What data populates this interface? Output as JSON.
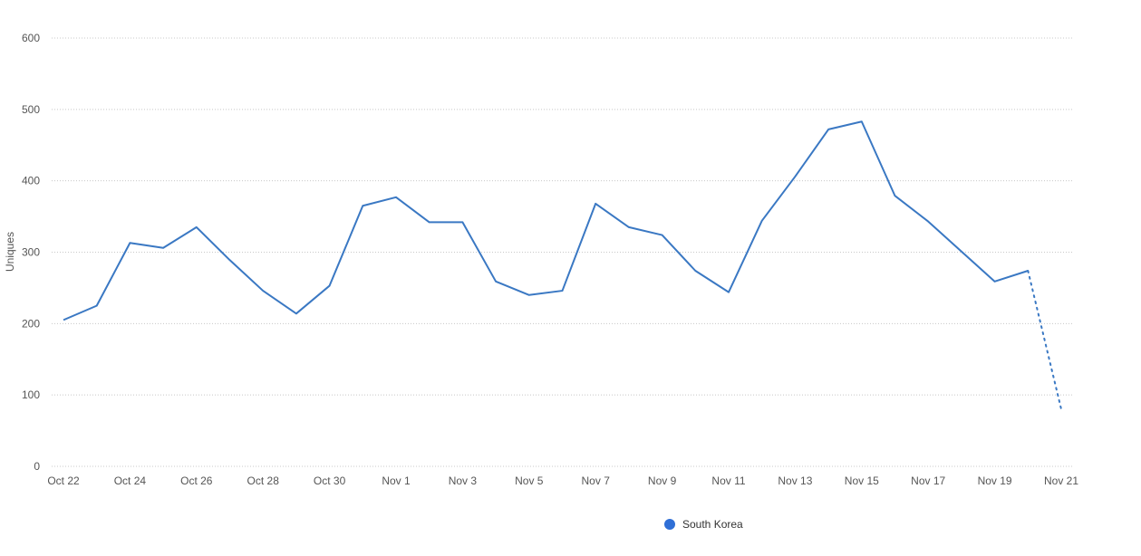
{
  "chart_data": {
    "type": "line",
    "title": "",
    "xlabel": "",
    "ylabel": "Uniques",
    "ylim": [
      0,
      600
    ],
    "yticks": [
      "0",
      "100",
      "200",
      "300",
      "400",
      "500",
      "600"
    ],
    "x": [
      "Oct 22",
      "Oct 23",
      "Oct 24",
      "Oct 25",
      "Oct 26",
      "Oct 27",
      "Oct 28",
      "Oct 29",
      "Oct 30",
      "Oct 31",
      "Nov 1",
      "Nov 2",
      "Nov 3",
      "Nov 4",
      "Nov 5",
      "Nov 6",
      "Nov 7",
      "Nov 8",
      "Nov 9",
      "Nov 10",
      "Nov 11",
      "Nov 12",
      "Nov 13",
      "Nov 14",
      "Nov 15",
      "Nov 16",
      "Nov 17",
      "Nov 18",
      "Nov 19",
      "Nov 20",
      "Nov 21"
    ],
    "xtick_labels": [
      "Oct 22",
      "Oct 24",
      "Oct 26",
      "Oct 28",
      "Oct 30",
      "Nov 1",
      "Nov 3",
      "Nov 5",
      "Nov 7",
      "Nov 9",
      "Nov 11",
      "Nov 13",
      "Nov 15",
      "Nov 17",
      "Nov 19",
      "Nov 21"
    ],
    "series": [
      {
        "name": "South Korea",
        "color": "#3a78c3",
        "legend_color": "#2f6fd6",
        "values": [
          205,
          225,
          313,
          306,
          335,
          289,
          246,
          214,
          253,
          365,
          377,
          342,
          342,
          259,
          240,
          246,
          368,
          335,
          324,
          274,
          244,
          344,
          406,
          472,
          483,
          379,
          343,
          301,
          259,
          274,
          80
        ],
        "dotted_from_index": 29
      }
    ],
    "grid": true,
    "legend_position": "bottom-center"
  }
}
